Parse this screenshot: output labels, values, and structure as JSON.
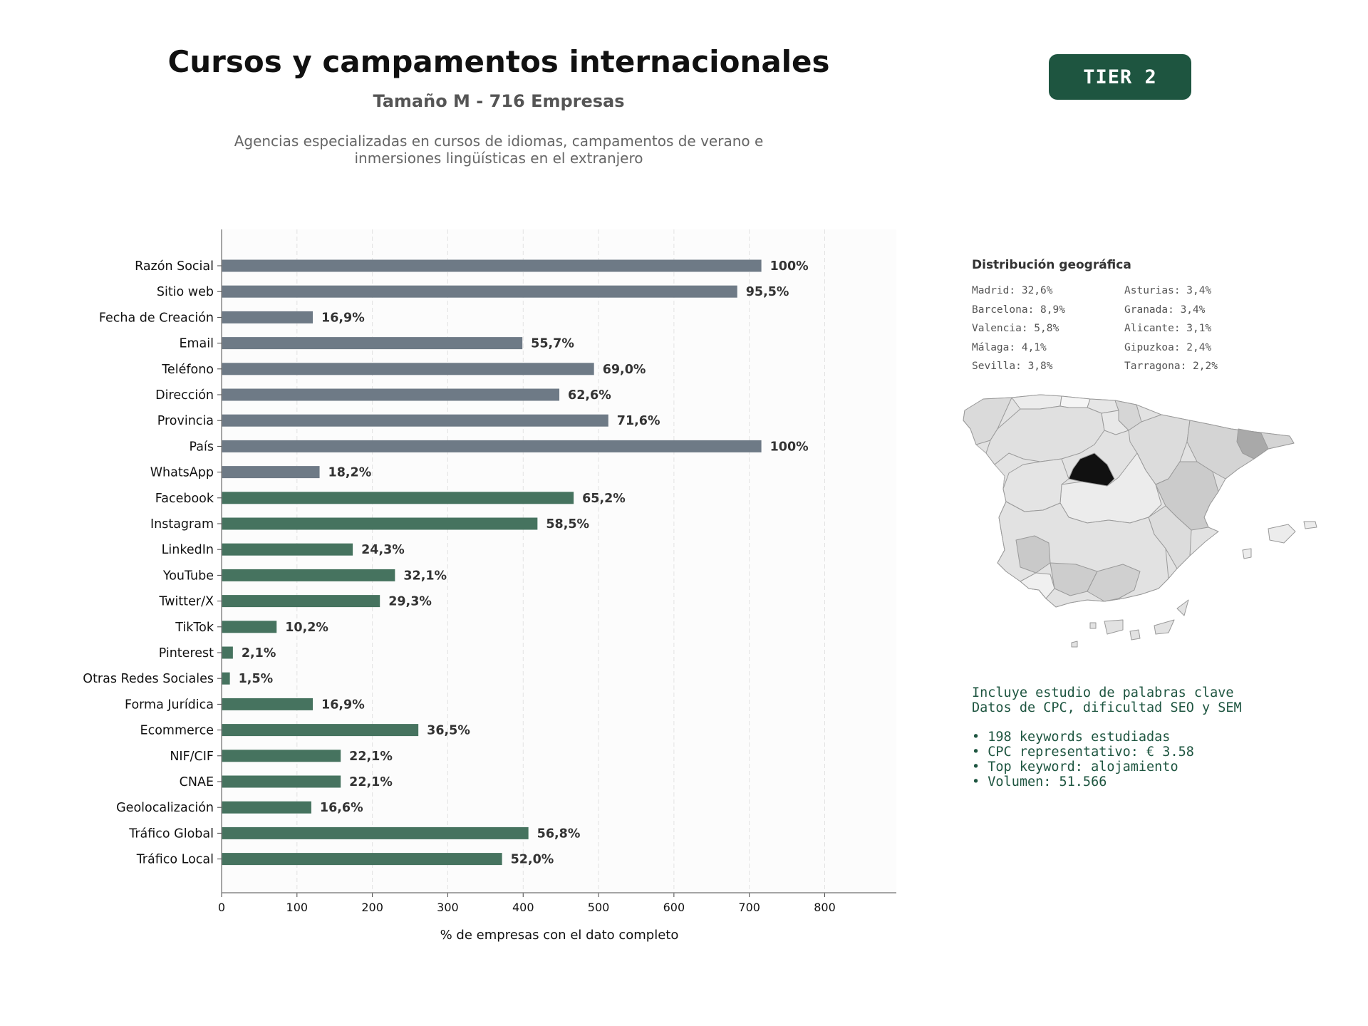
{
  "header": {
    "title": "Cursos y campamentos internacionales",
    "subtitle": "Tamaño M - 716 Empresas",
    "description": "Agencias especializadas en cursos de idiomas, campamentos de verano e\ninmersiones lingüísticas en el extranjero",
    "tier_badge": "TIER 2"
  },
  "colors": {
    "basic_bar": "#6e7a86",
    "digital_bar": "#46735f",
    "badge": "#1e5540",
    "keywords_text": "#1e5540",
    "map_highlight": "#111111"
  },
  "chart_data": {
    "type": "bar",
    "orientation": "horizontal",
    "xlabel": "% de empresas con el dato completo",
    "xlim": [
      0,
      895
    ],
    "xticks": [
      0,
      100,
      200,
      300,
      400,
      500,
      600,
      700,
      800
    ],
    "grid": "vertical-dashed",
    "categories": [
      "Razón Social",
      "Sitio web",
      "Fecha de Creación",
      "Email",
      "Teléfono",
      "Dirección",
      "Provincia",
      "País",
      "WhatsApp",
      "Facebook",
      "Instagram",
      "LinkedIn",
      "YouTube",
      "Twitter/X",
      "TikTok",
      "Pinterest",
      "Otras Redes Sociales",
      "Forma Jurídica",
      "Ecommerce",
      "NIF/CIF",
      "CNAE",
      "Geolocalización",
      "Tráfico Global",
      "Tráfico Local"
    ],
    "values": [
      716,
      684,
      121,
      399,
      494,
      448,
      513,
      716,
      130,
      467,
      419,
      174,
      230,
      210,
      73,
      15,
      11,
      121,
      261,
      158,
      158,
      119,
      407,
      372
    ],
    "labels": [
      "100%",
      "95,5%",
      "16,9%",
      "55,7%",
      "69,0%",
      "62,6%",
      "71,6%",
      "100%",
      "18,2%",
      "65,2%",
      "58,5%",
      "24,3%",
      "32,1%",
      "29,3%",
      "10,2%",
      "2,1%",
      "1,5%",
      "16,9%",
      "36,5%",
      "22,1%",
      "22,1%",
      "16,6%",
      "56,8%",
      "52,0%"
    ],
    "groups": [
      "basic",
      "basic",
      "basic",
      "basic",
      "basic",
      "basic",
      "basic",
      "basic",
      "basic",
      "digital",
      "digital",
      "digital",
      "digital",
      "digital",
      "digital",
      "digital",
      "digital",
      "digital",
      "digital",
      "digital",
      "digital",
      "digital",
      "digital",
      "digital"
    ]
  },
  "geo": {
    "title": "Distribución geográfica",
    "left": [
      "Madrid: 32,6%",
      "Barcelona: 8,9%",
      "Valencia: 5,8%",
      "Málaga: 4,1%",
      "Sevilla: 3,8%"
    ],
    "right": [
      "Asturias: 3,4%",
      "Granada: 3,4%",
      "Alicante: 3,1%",
      "Gipuzkoa: 2,4%",
      "Tarragona: 2,2%"
    ]
  },
  "keywords": {
    "line1": "Incluye estudio de palabras clave",
    "line2": "Datos de CPC, dificultad SEO y SEM",
    "bullets": [
      "• 198 keywords estudiadas",
      "• CPC representativo: € 3.58",
      "• Top keyword: alojamiento",
      "• Volumen: 51.566"
    ]
  }
}
